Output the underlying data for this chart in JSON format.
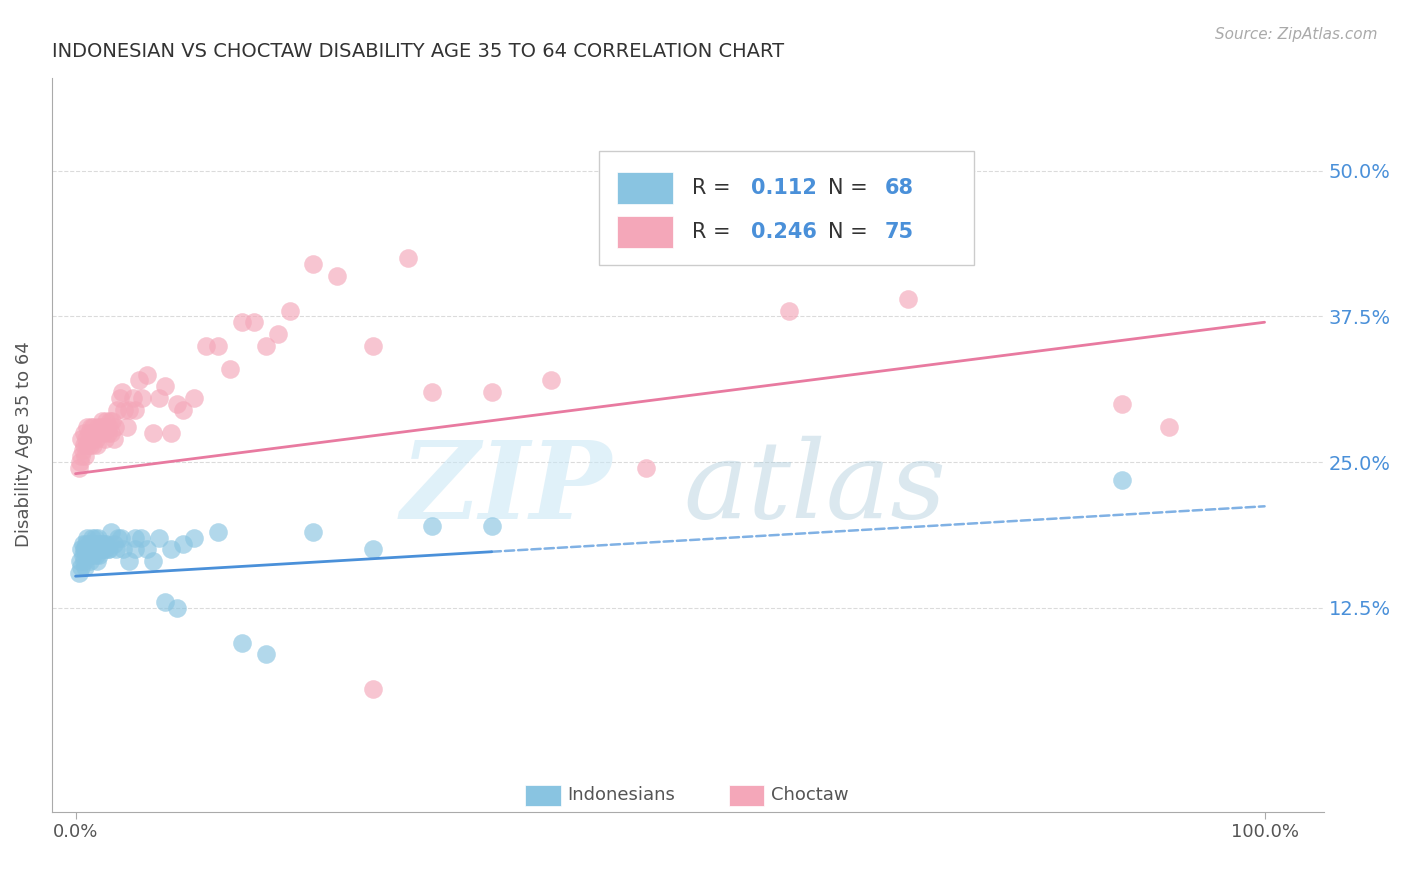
{
  "title": "INDONESIAN VS CHOCTAW DISABILITY AGE 35 TO 64 CORRELATION CHART",
  "source": "Source: ZipAtlas.com",
  "ylabel": "Disability Age 35 to 64",
  "xlim": [
    -0.02,
    1.05
  ],
  "ylim": [
    -0.05,
    0.58
  ],
  "xticks": [
    0.0,
    1.0
  ],
  "xticklabels": [
    "0.0%",
    "100.0%"
  ],
  "yticks": [
    0.125,
    0.25,
    0.375,
    0.5
  ],
  "yticklabels": [
    "12.5%",
    "25.0%",
    "37.5%",
    "50.0%"
  ],
  "legend_r_blue": "0.112",
  "legend_n_blue": "68",
  "legend_r_pink": "0.246",
  "legend_n_pink": "75",
  "blue_color": "#89c4e1",
  "pink_color": "#f4a7b9",
  "blue_line_color": "#4a90d9",
  "pink_line_color": "#e87aa0",
  "legend_text_color": "#4a90d9",
  "title_color": "#333333",
  "grid_color": "#cccccc",
  "indonesian_label": "Indonesians",
  "choctaw_label": "Choctaw",
  "blue_slope": 0.06,
  "blue_intercept": 0.152,
  "pink_slope": 0.13,
  "pink_intercept": 0.24,
  "blue_x": [
    0.003,
    0.004,
    0.005,
    0.005,
    0.006,
    0.006,
    0.007,
    0.007,
    0.008,
    0.008,
    0.009,
    0.009,
    0.01,
    0.01,
    0.011,
    0.011,
    0.012,
    0.012,
    0.013,
    0.013,
    0.014,
    0.014,
    0.015,
    0.015,
    0.016,
    0.016,
    0.017,
    0.017,
    0.018,
    0.018,
    0.019,
    0.019,
    0.02,
    0.02,
    0.021,
    0.022,
    0.023,
    0.024,
    0.025,
    0.026,
    0.027,
    0.028,
    0.03,
    0.032,
    0.034,
    0.036,
    0.038,
    0.04,
    0.045,
    0.05,
    0.055,
    0.06,
    0.07,
    0.08,
    0.09,
    0.1,
    0.12,
    0.14,
    0.16,
    0.2,
    0.25,
    0.3,
    0.35,
    0.05,
    0.065,
    0.075,
    0.085,
    0.88
  ],
  "blue_y": [
    0.155,
    0.165,
    0.175,
    0.16,
    0.17,
    0.18,
    0.165,
    0.175,
    0.16,
    0.175,
    0.17,
    0.18,
    0.175,
    0.185,
    0.17,
    0.18,
    0.165,
    0.175,
    0.18,
    0.17,
    0.175,
    0.185,
    0.17,
    0.18,
    0.175,
    0.185,
    0.17,
    0.175,
    0.165,
    0.18,
    0.175,
    0.185,
    0.17,
    0.18,
    0.175,
    0.18,
    0.175,
    0.18,
    0.175,
    0.18,
    0.175,
    0.175,
    0.19,
    0.18,
    0.175,
    0.185,
    0.185,
    0.175,
    0.165,
    0.175,
    0.185,
    0.175,
    0.185,
    0.175,
    0.18,
    0.185,
    0.19,
    0.095,
    0.085,
    0.19,
    0.175,
    0.195,
    0.195,
    0.185,
    0.165,
    0.13,
    0.125,
    0.235
  ],
  "pink_x": [
    0.003,
    0.004,
    0.005,
    0.005,
    0.006,
    0.007,
    0.007,
    0.008,
    0.009,
    0.01,
    0.01,
    0.011,
    0.012,
    0.013,
    0.014,
    0.015,
    0.015,
    0.016,
    0.017,
    0.018,
    0.019,
    0.02,
    0.021,
    0.022,
    0.023,
    0.024,
    0.025,
    0.026,
    0.027,
    0.028,
    0.029,
    0.03,
    0.031,
    0.032,
    0.033,
    0.035,
    0.037,
    0.039,
    0.041,
    0.043,
    0.045,
    0.048,
    0.05,
    0.053,
    0.056,
    0.06,
    0.065,
    0.07,
    0.075,
    0.08,
    0.085,
    0.09,
    0.1,
    0.11,
    0.12,
    0.13,
    0.14,
    0.15,
    0.16,
    0.17,
    0.18,
    0.2,
    0.22,
    0.25,
    0.28,
    0.3,
    0.35,
    0.4,
    0.5,
    0.6,
    0.7,
    0.88,
    0.92,
    0.25,
    0.48
  ],
  "pink_y": [
    0.245,
    0.25,
    0.27,
    0.255,
    0.26,
    0.275,
    0.265,
    0.255,
    0.27,
    0.265,
    0.28,
    0.275,
    0.265,
    0.28,
    0.27,
    0.265,
    0.28,
    0.275,
    0.27,
    0.265,
    0.28,
    0.275,
    0.28,
    0.285,
    0.275,
    0.28,
    0.27,
    0.285,
    0.275,
    0.28,
    0.285,
    0.275,
    0.285,
    0.27,
    0.28,
    0.295,
    0.305,
    0.31,
    0.295,
    0.28,
    0.295,
    0.305,
    0.295,
    0.32,
    0.305,
    0.325,
    0.275,
    0.305,
    0.315,
    0.275,
    0.3,
    0.295,
    0.305,
    0.35,
    0.35,
    0.33,
    0.37,
    0.37,
    0.35,
    0.36,
    0.38,
    0.42,
    0.41,
    0.055,
    0.425,
    0.31,
    0.31,
    0.32,
    0.475,
    0.38,
    0.39,
    0.3,
    0.28,
    0.35,
    0.245
  ]
}
